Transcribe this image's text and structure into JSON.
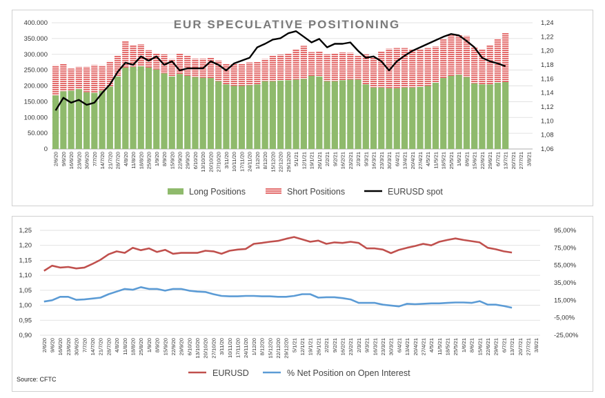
{
  "source_label": "Source: CFTC",
  "colors": {
    "long": "#8fba6c",
    "short": "#e36b6b",
    "spot": "#000000",
    "eurusd2": "#c0504d",
    "net": "#5b9bd5",
    "grid": "#d9d9d9"
  },
  "chart_data": [
    {
      "type": "bar",
      "stacked": true,
      "title": "EUR SPECULATIVE POSITIONING",
      "categories": [
        "2/6/20",
        "9/6/20",
        "16/6/20",
        "23/6/20",
        "30/6/20",
        "7/7/20",
        "14/7/20",
        "21/7/20",
        "28/7/20",
        "4/8/20",
        "11/8/20",
        "18/8/20",
        "25/8/20",
        "1/9/20",
        "8/9/20",
        "15/9/20",
        "22/9/20",
        "29/9/20",
        "6/10/20",
        "13/10/20",
        "20/10/20",
        "27/10/20",
        "3/11/20",
        "10/11/20",
        "17/11/20",
        "24/11/20",
        "1/12/20",
        "8/12/20",
        "15/12/20",
        "22/12/20",
        "29/12/20",
        "5/1/21",
        "12/1/21",
        "19/1/21",
        "26/1/21",
        "2/2/21",
        "9/2/21",
        "16/2/21",
        "23/2/21",
        "2/3/21",
        "9/3/21",
        "16/3/21",
        "23/3/21",
        "30/3/21",
        "6/4/21",
        "13/4/21",
        "20/4/21",
        "27/4/21",
        "4/5/21",
        "11/5/21",
        "18/5/21",
        "25/5/21",
        "1/6/21",
        "8/6/21",
        "15/6/21",
        "22/6/21",
        "29/6/21",
        "6/7/21",
        "13/7/21",
        "20/7/21",
        "27/7/21",
        "3/8/21"
      ],
      "x_labels_shown": [
        "2/6/20",
        "9/6/20",
        "16/6/20",
        "23/6/20",
        "30/6/20",
        "7/7/20",
        "14/7/20",
        "21/7/20",
        "28/7/20",
        "4/8/20",
        "11/8/20",
        "18/8/20",
        "25/8/20",
        "1/9/20",
        "8/9/20",
        "15/9/20",
        "22/9/20",
        "29/9/20",
        "6/10/20",
        "13/10/20",
        "20/10/20",
        "27/10/20",
        "3/11/20",
        "10/11/20",
        "17/11/20",
        "24/11/20",
        "1/12/20",
        "8/12/20",
        "15/12/20",
        "22/12/20",
        "29/12/20",
        "5/1/21",
        "12/1/21",
        "19/1/21",
        "26/1/21",
        "2/2/21",
        "9/2/21",
        "16/2/21",
        "23/2/21",
        "2/3/21",
        "9/3/21",
        "16/3/21",
        "23/3/21",
        "30/3/21",
        "6/4/21",
        "13/4/21",
        "20/4/21",
        "27/4/21",
        "4/5/21",
        "11/5/21",
        "18/5/21",
        "25/5/21",
        "1/6/21",
        "8/6/21",
        "15/6/21",
        "22/6/21",
        "29/6/21",
        "6/7/21",
        "13/7/21",
        "20/7/21",
        "27/7/21",
        "3/8/21"
      ],
      "series": [
        {
          "name": "Long Positions",
          "values": [
            170000,
            183000,
            185000,
            190000,
            180000,
            178000,
            185000,
            198000,
            230000,
            258000,
            260000,
            262000,
            258000,
            252000,
            240000,
            230000,
            238000,
            232000,
            228000,
            226000,
            225000,
            215000,
            205000,
            200000,
            200000,
            202000,
            205000,
            215000,
            215000,
            217000,
            218000,
            220000,
            222000,
            232000,
            230000,
            215000,
            215000,
            218000,
            220000,
            220000,
            205000,
            195000,
            195000,
            193000,
            193000,
            195000,
            195000,
            197000,
            200000,
            210000,
            225000,
            232000,
            235000,
            228000,
            208000,
            205000,
            205000,
            210000,
            212000,
            null,
            null,
            null
          ]
        },
        {
          "name": "Short Positions",
          "values": [
            95000,
            88000,
            70000,
            70000,
            80000,
            88000,
            80000,
            80000,
            65000,
            85000,
            70000,
            70000,
            55000,
            50000,
            60000,
            55000,
            65000,
            63000,
            58000,
            60000,
            65000,
            65000,
            65000,
            70000,
            70000,
            72000,
            72000,
            70000,
            80000,
            82000,
            85000,
            95000,
            105000,
            75000,
            80000,
            85000,
            88000,
            88000,
            85000,
            75000,
            95000,
            95000,
            115000,
            125000,
            127000,
            125000,
            120000,
            118000,
            120000,
            115000,
            125000,
            128000,
            128000,
            130000,
            115000,
            110000,
            125000,
            140000,
            155000,
            null,
            null,
            null
          ]
        },
        {
          "name": "EURUSD spot",
          "axis": "right",
          "values": [
            1.115,
            1.133,
            1.126,
            1.13,
            1.123,
            1.126,
            1.14,
            1.152,
            1.17,
            1.183,
            1.18,
            1.192,
            1.186,
            1.192,
            1.18,
            1.185,
            1.172,
            1.175,
            1.175,
            1.175,
            1.185,
            1.18,
            1.172,
            1.182,
            1.186,
            1.19,
            1.205,
            1.21,
            1.216,
            1.218,
            1.225,
            1.228,
            1.22,
            1.212,
            1.217,
            1.205,
            1.21,
            1.21,
            1.212,
            1.2,
            1.19,
            1.192,
            1.185,
            1.172,
            1.185,
            1.193,
            1.2,
            1.205,
            1.21,
            1.215,
            1.22,
            1.224,
            1.222,
            1.214,
            1.205,
            1.19,
            1.185,
            1.182,
            1.178,
            null,
            null,
            null
          ]
        }
      ],
      "y_left_ticks": [
        "0",
        "50.000",
        "100.000",
        "150.000",
        "200.000",
        "250.000",
        "300.000",
        "350.000",
        "400.000"
      ],
      "ylim_left": [
        0,
        400000
      ],
      "y_right_ticks": [
        "1,06",
        "1,08",
        "1,10",
        "1,12",
        "1,14",
        "1,16",
        "1,18",
        "1,20",
        "1,22",
        "1,24"
      ],
      "ylim_right": [
        1.06,
        1.24
      ],
      "legend": [
        "Long Positions",
        "Short Positions",
        "EURUSD spot"
      ],
      "legend_position": "bottom",
      "grid": true
    },
    {
      "type": "line",
      "categories": [
        "2/6/20",
        "9/6/20",
        "16/6/20",
        "23/6/20",
        "30/6/20",
        "7/7/20",
        "14/7/20",
        "21/7/20",
        "28/7/20",
        "4/8/20",
        "11/8/20",
        "18/8/20",
        "25/8/20",
        "1/9/20",
        "8/9/20",
        "15/9/20",
        "22/9/20",
        "29/9/20",
        "6/10/20",
        "13/10/20",
        "20/10/20",
        "27/10/20",
        "3/11/20",
        "10/11/20",
        "17/11/20",
        "24/11/20",
        "1/12/20",
        "8/12/20",
        "15/12/20",
        "22/12/20",
        "29/12/20",
        "5/1/21",
        "12/1/21",
        "19/1/21",
        "26/1/21",
        "2/2/21",
        "9/2/21",
        "16/2/21",
        "23/2/21",
        "2/3/21",
        "9/3/21",
        "16/3/21",
        "23/3/21",
        "30/3/21",
        "6/4/21",
        "13/4/21",
        "20/4/21",
        "27/4/21",
        "4/5/21",
        "11/5/21",
        "18/5/21",
        "25/5/21",
        "1/6/21",
        "8/6/21",
        "15/6/21",
        "22/6/21",
        "29/6/21",
        "6/7/21",
        "13/7/21",
        "20/7/21",
        "27/7/21",
        "3/8/21"
      ],
      "x_labels_shown": [
        "2/6/20",
        "9/6/20",
        "16/6/20",
        "23/6/20",
        "30/6/20",
        "7/7/20",
        "14/7/20",
        "21/7/20",
        "28/7/20",
        "4/8/20",
        "11/8/20",
        "18/8/20",
        "25/8/20",
        "1/9/20",
        "8/9/20",
        "15/9/20",
        "22/9/20",
        "29/9/20",
        "6/10/20",
        "13/10/20",
        "20/10/20",
        "27/10/20",
        "3/11/20",
        "10/11/20",
        "17/11/20",
        "24/11/20",
        "1/12/20",
        "8/12/20",
        "15/12/20",
        "22/12/20",
        "29/12/20",
        "5/1/21",
        "12/1/21",
        "19/1/21",
        "26/1/21",
        "2/2/21",
        "9/2/21",
        "16/2/21",
        "23/2/21",
        "2/3/21",
        "9/3/21",
        "16/3/21",
        "23/3/21",
        "30/3/21",
        "6/4/21",
        "13/4/21",
        "20/4/21",
        "27/4/21",
        "4/5/21",
        "11/5/21",
        "18/5/21",
        "25/5/21",
        "1/6/21",
        "8/6/21",
        "15/6/21",
        "22/6/21",
        "29/6/21",
        "6/7/21",
        "13/7/21",
        "20/7/21",
        "27/7/21",
        "3/8/21"
      ],
      "series": [
        {
          "name": "EURUSD",
          "axis": "left",
          "values": [
            1.115,
            1.132,
            1.126,
            1.128,
            1.123,
            1.126,
            1.138,
            1.152,
            1.17,
            1.18,
            1.175,
            1.192,
            1.184,
            1.19,
            1.178,
            1.185,
            1.172,
            1.175,
            1.175,
            1.175,
            1.182,
            1.18,
            1.172,
            1.182,
            1.186,
            1.188,
            1.205,
            1.208,
            1.212,
            1.215,
            1.222,
            1.228,
            1.22,
            1.212,
            1.216,
            1.205,
            1.21,
            1.208,
            1.212,
            1.208,
            1.19,
            1.19,
            1.186,
            1.174,
            1.185,
            1.192,
            1.198,
            1.205,
            1.2,
            1.212,
            1.218,
            1.223,
            1.218,
            1.214,
            1.21,
            1.192,
            1.187,
            1.18,
            1.176,
            null,
            null,
            null
          ]
        },
        {
          "name": "% Net Position on Open Interest",
          "axis": "right",
          "values": [
            13.5,
            15,
            19,
            19,
            15.5,
            16,
            17,
            18,
            22,
            25,
            28,
            27,
            30,
            28,
            28,
            26,
            28,
            28,
            26,
            25,
            24.5,
            22,
            20,
            19.5,
            19.5,
            20,
            20,
            19.5,
            19.5,
            19,
            19,
            20,
            22,
            22,
            18,
            18.5,
            18.5,
            17.5,
            16,
            12,
            12,
            12,
            10,
            9,
            8,
            11,
            10.5,
            11,
            11.5,
            11.5,
            12,
            12.5,
            12.5,
            12,
            14,
            10,
            10,
            8.5,
            6.5,
            null,
            null,
            null
          ]
        }
      ],
      "y_left_ticks": [
        "0,90",
        "0,95",
        "1,00",
        "1,05",
        "1,10",
        "1,15",
        "1,20",
        "1,25"
      ],
      "ylim_left": [
        0.9,
        1.25
      ],
      "y_right_ticks": [
        "-25,00%",
        "-5,00%",
        "15,00%",
        "35,00%",
        "55,00%",
        "75,00%",
        "95,00%"
      ],
      "ylim_right": [
        -25,
        95
      ],
      "legend": [
        "EURUSD",
        "% Net Position on Open Interest"
      ],
      "legend_position": "bottom",
      "grid": true
    }
  ]
}
